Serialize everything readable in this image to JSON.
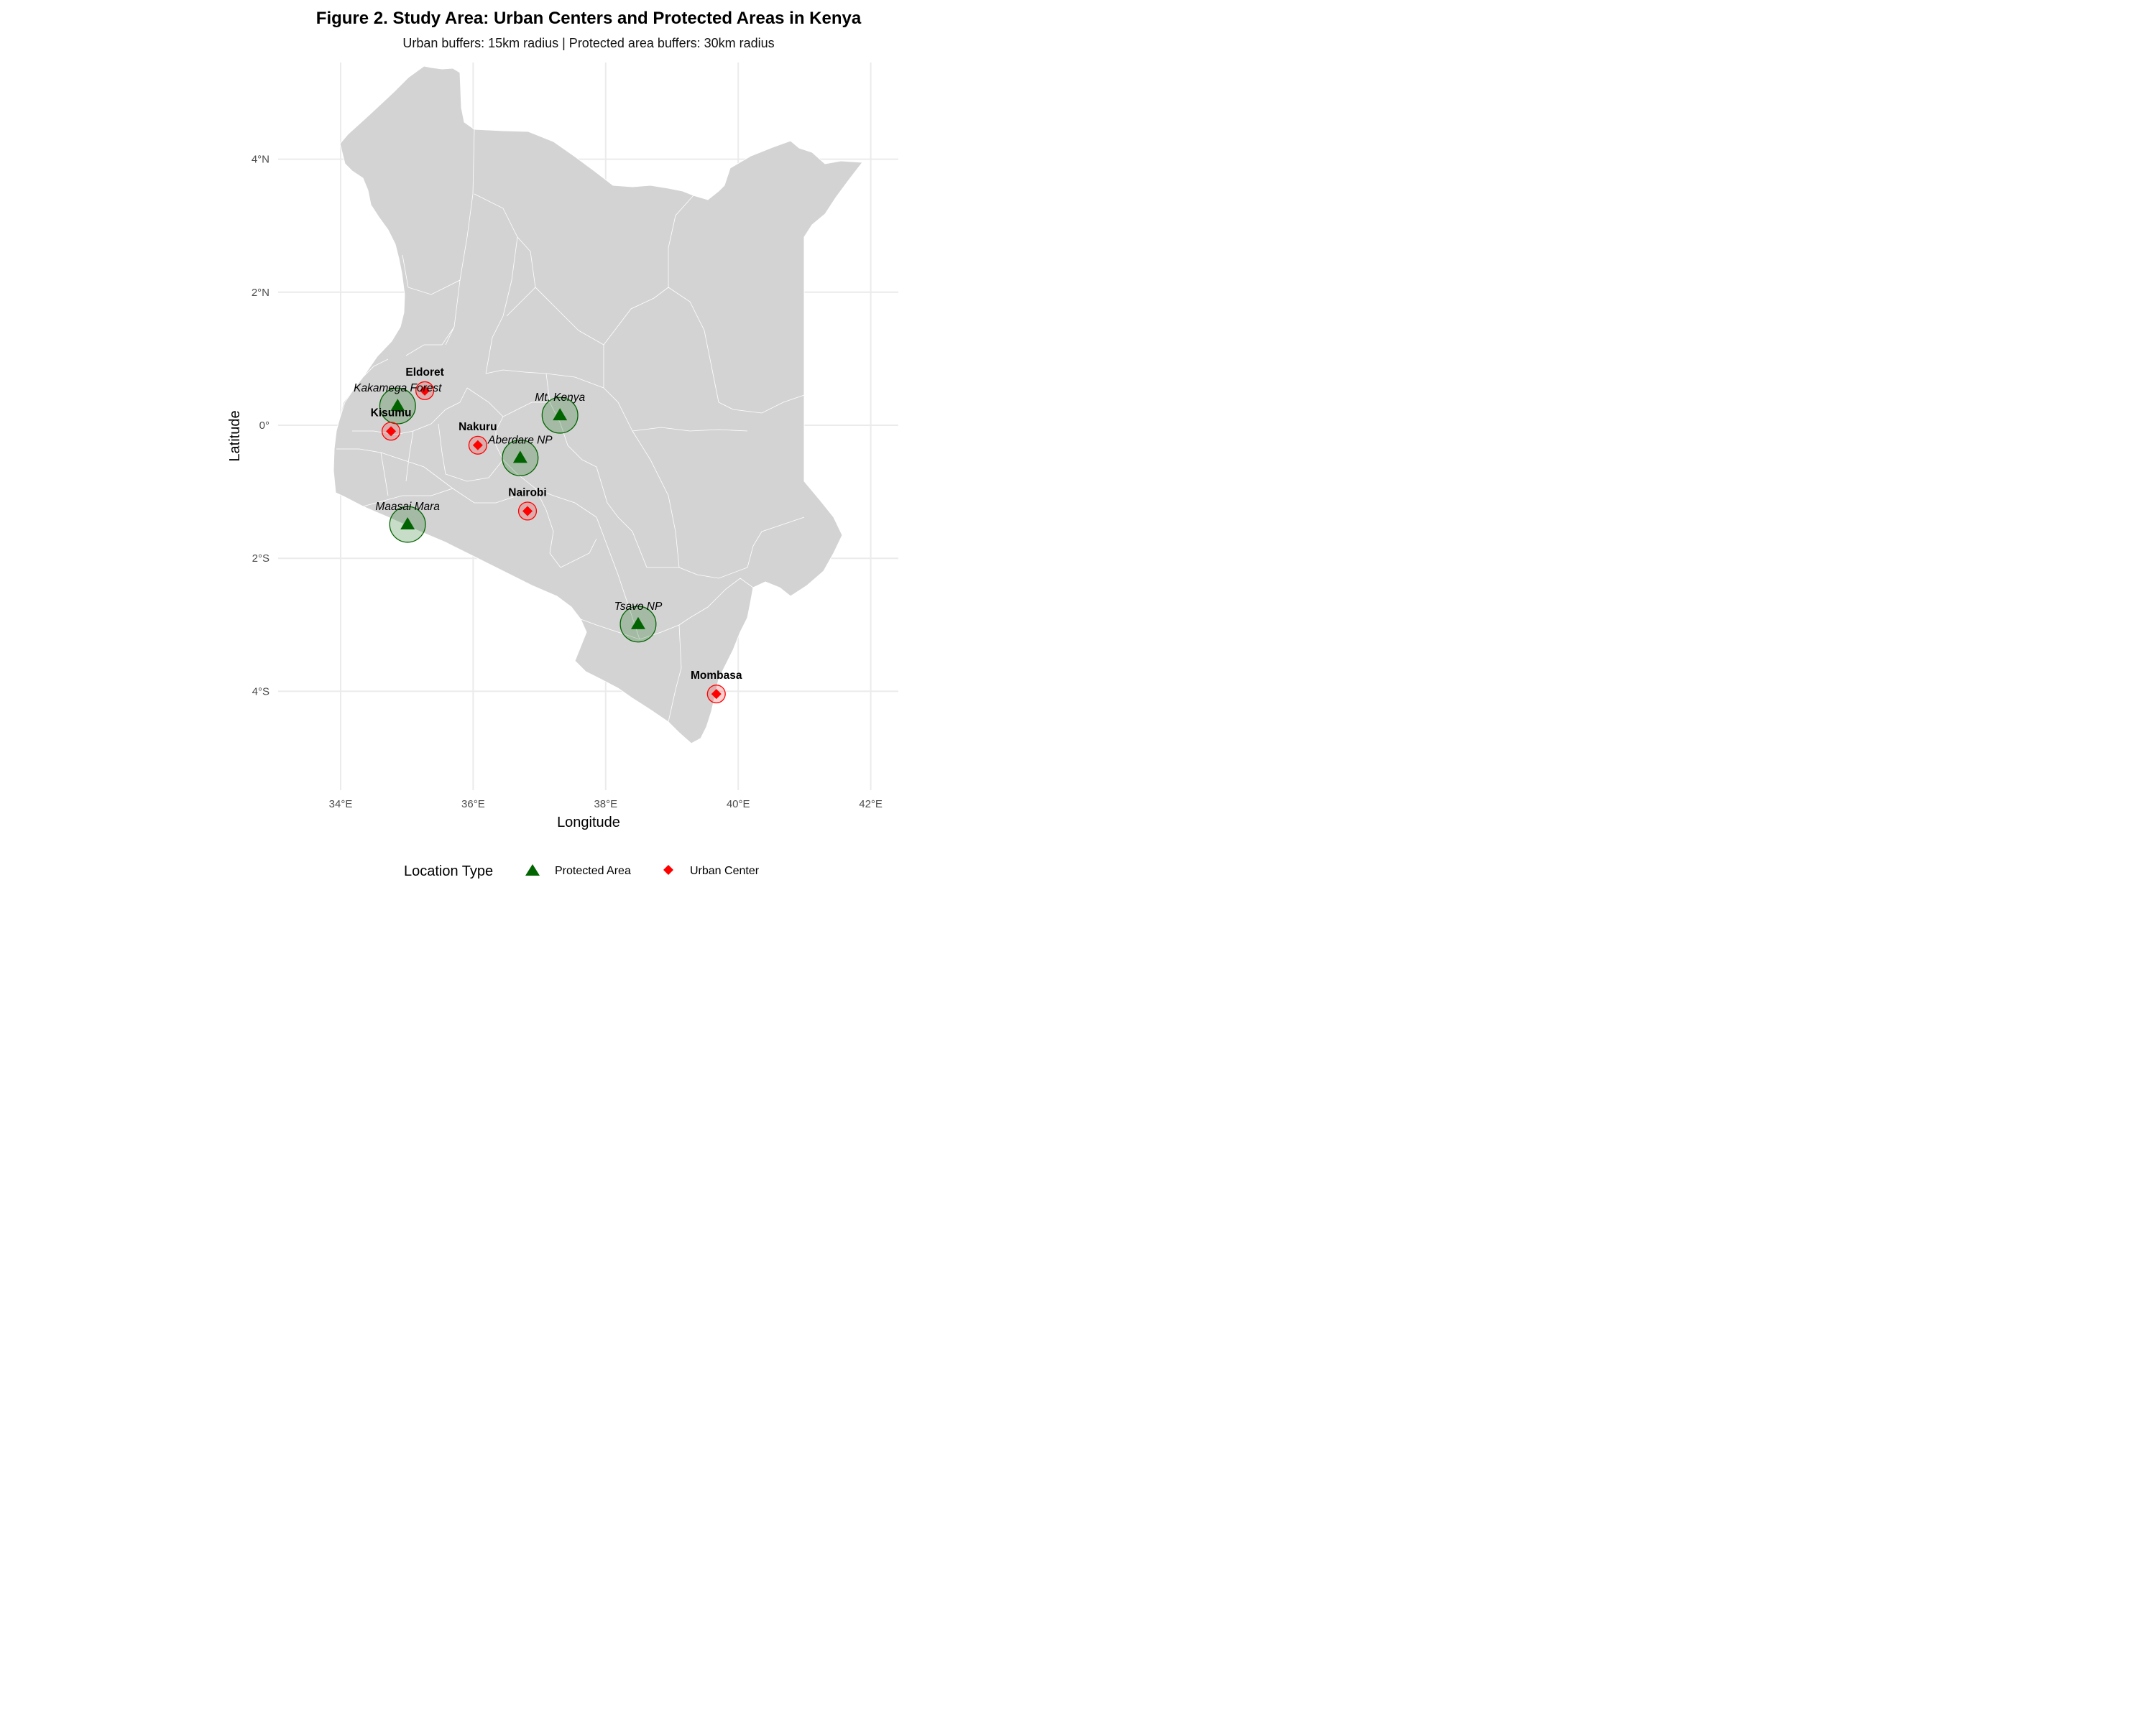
{
  "title": "Figure 2. Study Area: Urban Centers and Protected Areas in Kenya",
  "subtitle": "Urban buffers: 15km radius | Protected area buffers: 30km radius",
  "axes": {
    "xlabel": "Longitude",
    "ylabel": "Latitude",
    "x_ticks": [
      {
        "value": 34,
        "label": "34°E"
      },
      {
        "value": 36,
        "label": "36°E"
      },
      {
        "value": 38,
        "label": "38°E"
      },
      {
        "value": 40,
        "label": "40°E"
      },
      {
        "value": 42,
        "label": "42°E"
      }
    ],
    "y_ticks": [
      {
        "value": 4,
        "label": "4°N"
      },
      {
        "value": 2,
        "label": "2°N"
      },
      {
        "value": 0,
        "label": "0°"
      },
      {
        "value": -2,
        "label": "2°S"
      },
      {
        "value": -4,
        "label": "4°S"
      }
    ],
    "xlim": [
      33.6,
      42.4
    ],
    "ylim": [
      -5.5,
      5.4
    ]
  },
  "legend": {
    "title": "Location Type",
    "position": "bottom",
    "items": [
      {
        "label": "Protected Area",
        "shape": "triangle",
        "color": "#006400"
      },
      {
        "label": "Urban Center",
        "shape": "diamond",
        "color": "#ff0000"
      }
    ]
  },
  "colors": {
    "land": "#d3d3d3",
    "protected_area": "#006400",
    "urban_center": "#ff0000"
  },
  "urban_centers": [
    {
      "name": "Eldoret",
      "lon": 35.27,
      "lat": 0.52
    },
    {
      "name": "Kisumu",
      "lon": 34.76,
      "lat": -0.09
    },
    {
      "name": "Nakuru",
      "lon": 36.07,
      "lat": -0.3
    },
    {
      "name": "Nairobi",
      "lon": 36.82,
      "lat": -1.29
    },
    {
      "name": "Mombasa",
      "lon": 39.67,
      "lat": -4.04
    }
  ],
  "protected_areas": [
    {
      "name": "Kakamega Forest",
      "lon": 34.86,
      "lat": 0.29
    },
    {
      "name": "Mt. Kenya",
      "lon": 37.31,
      "lat": 0.15
    },
    {
      "name": "Aberdare NP",
      "lon": 36.71,
      "lat": -0.49
    },
    {
      "name": "Maasai Mara",
      "lon": 35.01,
      "lat": -1.49
    },
    {
      "name": "Tsavo NP",
      "lon": 38.49,
      "lat": -2.99
    }
  ],
  "buffers": {
    "urban_radius_km": 15,
    "protected_radius_km": 30
  }
}
